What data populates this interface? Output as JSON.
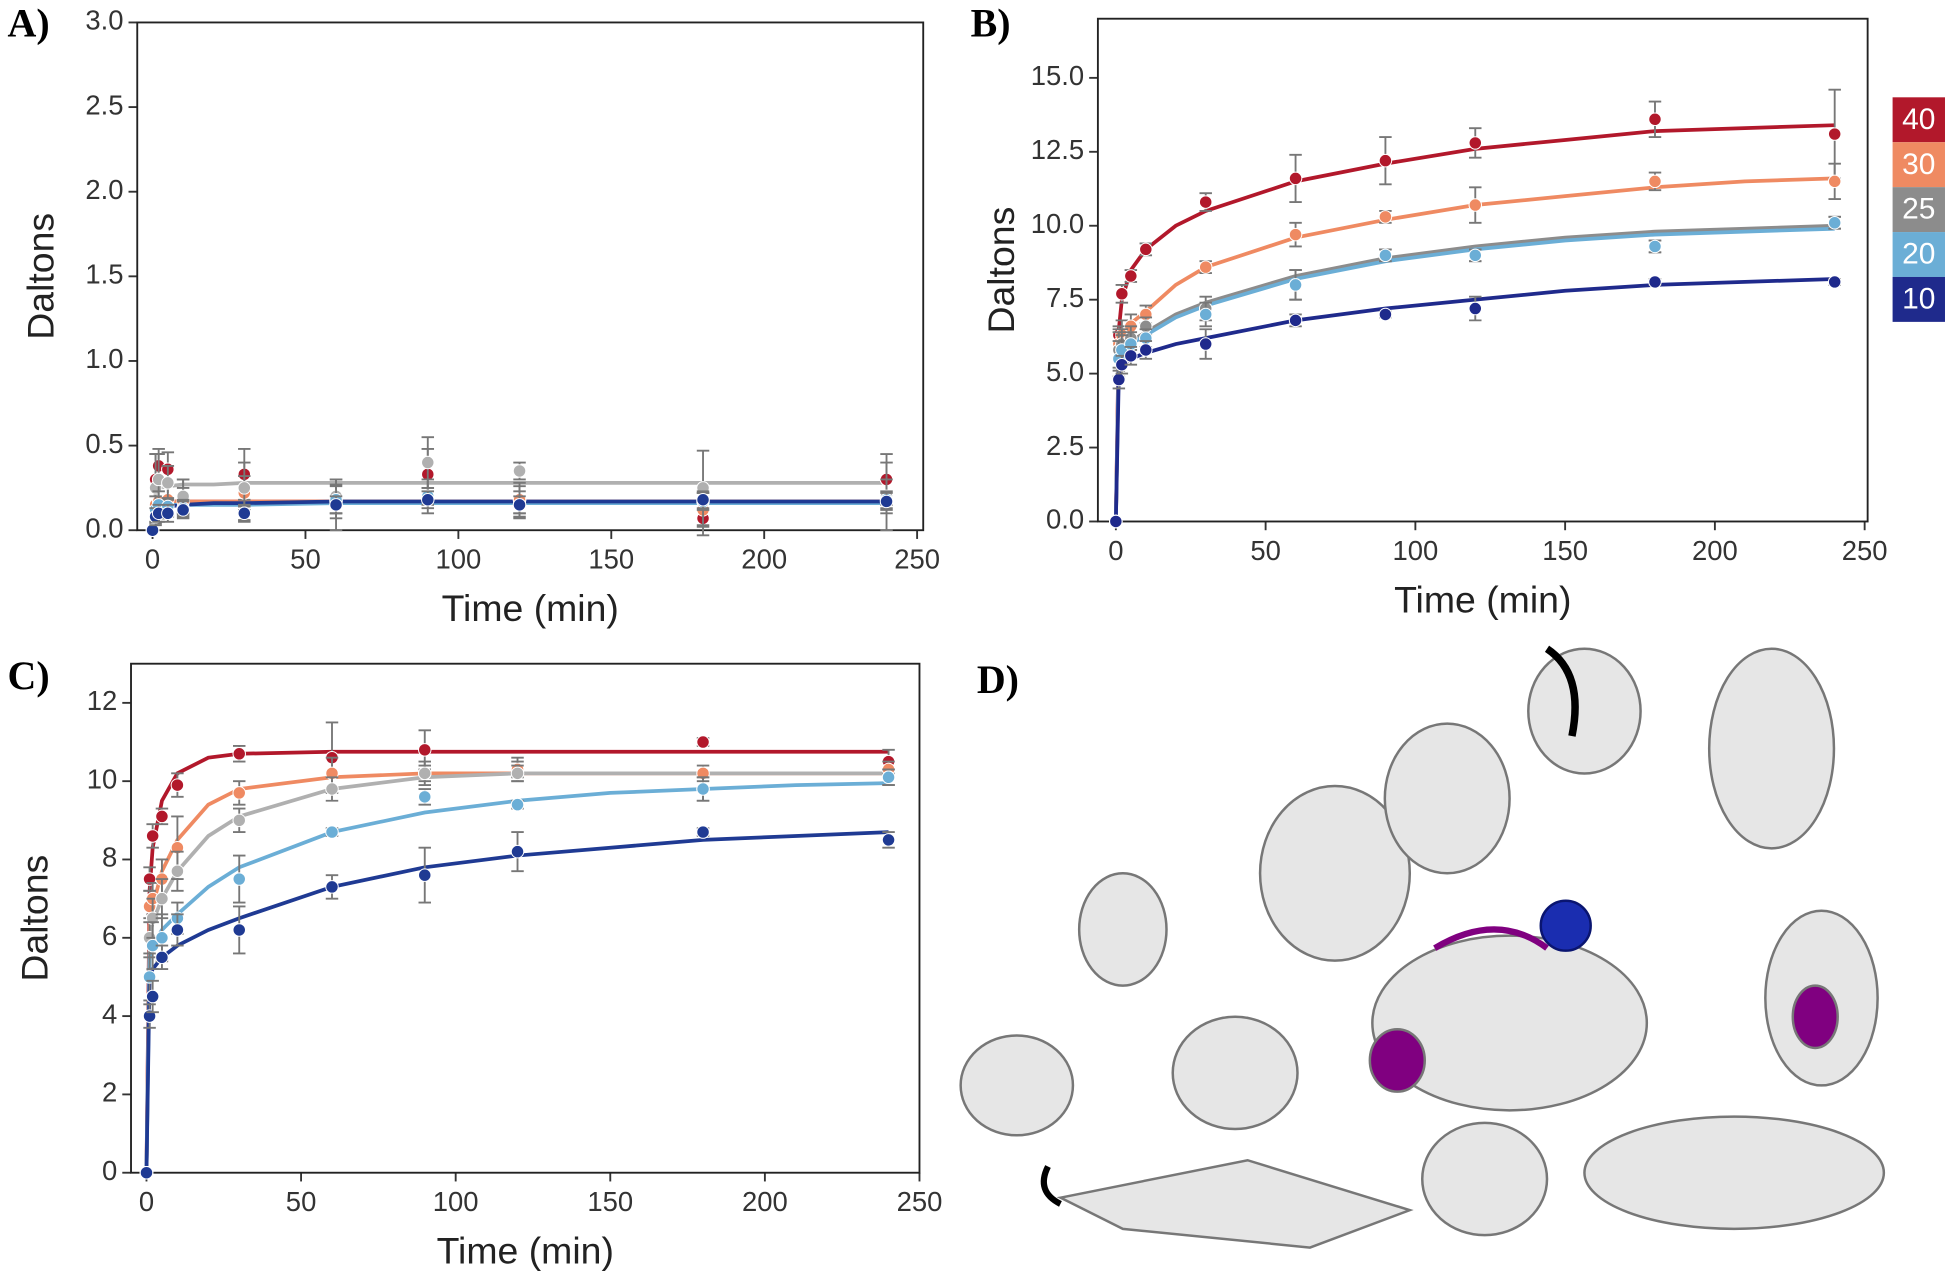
{
  "chart_data": [
    {
      "type": "scatter",
      "label": "A)",
      "xlabel": "Time (min)",
      "ylabel": "Daltons",
      "xlim": [
        -5,
        252
      ],
      "xticks": [
        0,
        50,
        100,
        150,
        200,
        250
      ],
      "ylim": [
        0,
        3
      ],
      "yticks": [
        {
          "value": 0,
          "label": "0.0"
        },
        0.5,
        {
          "value": 1,
          "label": "1.0"
        },
        1.5,
        {
          "value": 2,
          "label": "2.0"
        },
        2.5,
        {
          "value": 3,
          "label": "3.0"
        }
      ],
      "x": [
        0,
        1,
        2,
        5,
        10,
        30,
        60,
        90,
        120,
        180,
        240
      ],
      "fit_x": [
        0,
        1,
        2,
        5,
        10,
        20,
        30,
        60,
        90,
        120,
        150,
        180,
        210,
        240
      ],
      "series": [
        {
          "color": "#b2182b",
          "values": [
            0,
            0.3,
            0.38,
            0.36,
            0.2,
            0.33,
            0.15,
            0.33,
            0.18,
            0.07,
            0.3
          ],
          "errors": [
            0,
            0.15,
            0.1,
            0.1,
            0.1,
            0.15,
            0.15,
            0.15,
            0.1,
            0.1,
            0.15
          ],
          "fit": [
            0,
            0.15,
            0.16,
            0.17,
            0.17,
            0.17,
            0.17,
            0.17,
            0.17,
            0.17,
            0.17,
            0.17,
            0.17,
            0.17
          ]
        },
        {
          "color": "#ef8a62",
          "values": [
            0,
            0.15,
            0.17,
            0.18,
            0.17,
            0.22,
            0.17,
            0.2,
            0.18,
            0.12,
            0.2
          ],
          "errors": [
            0,
            0.1,
            0.1,
            0.1,
            0.08,
            0.1,
            0.1,
            0.1,
            0.08,
            0.1,
            0.1
          ],
          "fit": [
            0,
            0.16,
            0.17,
            0.17,
            0.17,
            0.17,
            0.17,
            0.17,
            0.17,
            0.17,
            0.17,
            0.17,
            0.17,
            0.17
          ]
        },
        {
          "color": "#b0b0b0",
          "values": [
            0,
            0.25,
            0.3,
            0.28,
            0.2,
            0.25,
            0.2,
            0.4,
            0.35,
            0.25,
            0.2
          ],
          "errors": [
            0,
            0.2,
            0.15,
            0.1,
            0.1,
            0.15,
            0.1,
            0.15,
            0.05,
            0.22,
            0.2
          ],
          "fit": [
            0,
            0.22,
            0.25,
            0.26,
            0.27,
            0.27,
            0.28,
            0.28,
            0.28,
            0.28,
            0.28,
            0.28,
            0.28,
            0.28
          ]
        },
        {
          "color": "#6baed6",
          "values": [
            0,
            0.12,
            0.15,
            0.14,
            0.13,
            0.1,
            0.18,
            0.2,
            0.15,
            0.17,
            0.18
          ],
          "errors": [
            0,
            0.08,
            0.08,
            0.05,
            0.05,
            0.04,
            0.08,
            0.05,
            0.08,
            0.05,
            0.05
          ],
          "fit": [
            0,
            0.13,
            0.14,
            0.15,
            0.15,
            0.15,
            0.15,
            0.16,
            0.16,
            0.16,
            0.16,
            0.16,
            0.16,
            0.16
          ]
        },
        {
          "color": "#1f3a93",
          "values": [
            0,
            0.08,
            0.1,
            0.1,
            0.12,
            0.1,
            0.15,
            0.18,
            0.15,
            0.18,
            0.17
          ],
          "errors": [
            0,
            0.05,
            0.05,
            0.05,
            0.05,
            0.05,
            0.05,
            0.05,
            0.05,
            0.05,
            0.05
          ],
          "fit": [
            0,
            0.1,
            0.12,
            0.14,
            0.15,
            0.16,
            0.16,
            0.17,
            0.17,
            0.17,
            0.17,
            0.17,
            0.17,
            0.17
          ]
        }
      ]
    },
    {
      "type": "scatter",
      "label": "B)",
      "xlabel": "Time (min)",
      "ylabel": "Daltons",
      "xlim": [
        -6,
        251
      ],
      "xticks": [
        0,
        50,
        100,
        150,
        200,
        250
      ],
      "ylim": [
        0,
        17
      ],
      "yticks": [
        {
          "value": 0,
          "label": "0.0"
        },
        2.5,
        {
          "value": 5,
          "label": "5.0"
        },
        7.5,
        {
          "value": 10,
          "label": "10.0"
        },
        12.5,
        {
          "value": 15,
          "label": "15.0"
        }
      ],
      "legend": "right",
      "x": [
        0,
        1,
        2,
        5,
        10,
        30,
        60,
        90,
        120,
        180,
        240
      ],
      "fit_x": [
        0,
        1,
        2,
        5,
        10,
        20,
        30,
        60,
        90,
        120,
        150,
        180,
        210,
        240
      ],
      "series": [
        {
          "name": "40",
          "color": "#b2182b",
          "values": [
            0,
            6.3,
            7.7,
            8.3,
            9.2,
            10.8,
            11.6,
            12.2,
            12.8,
            13.6,
            13.1
          ],
          "errors": [
            0,
            0.3,
            0.3,
            0.2,
            0.2,
            0.3,
            0.8,
            0.8,
            0.5,
            0.6,
            1.5
          ],
          "fit": [
            0,
            6.5,
            7.5,
            8.5,
            9.2,
            10.0,
            10.5,
            11.5,
            12.1,
            12.6,
            12.9,
            13.2,
            13.3,
            13.4
          ]
        },
        {
          "name": "30",
          "color": "#ef8a62",
          "values": [
            0,
            6.0,
            6.3,
            6.6,
            7.0,
            8.6,
            9.7,
            10.3,
            10.7,
            11.5,
            11.5
          ],
          "errors": [
            0,
            0.5,
            0.5,
            0.4,
            0.3,
            0.2,
            0.4,
            0.2,
            0.6,
            0.3,
            0.6
          ],
          "fit": [
            0,
            6.0,
            6.3,
            6.7,
            7.1,
            8.0,
            8.6,
            9.6,
            10.2,
            10.7,
            11.0,
            11.3,
            11.5,
            11.6
          ]
        },
        {
          "name": "25",
          "color": "#8c8c8c",
          "values": [
            0,
            5.8,
            6.0,
            6.2,
            6.6,
            7.2,
            8.0,
            9.0,
            9.0,
            9.3,
            10.1
          ],
          "errors": [
            0,
            0.6,
            0.5,
            0.4,
            0.3,
            0.4,
            0.5,
            0.2,
            0.2,
            0.2,
            0.2
          ],
          "fit": [
            0,
            5.7,
            5.9,
            6.1,
            6.4,
            7.0,
            7.4,
            8.3,
            8.9,
            9.3,
            9.6,
            9.8,
            9.9,
            10.0
          ]
        },
        {
          "name": "20",
          "color": "#6baed6",
          "values": [
            0,
            5.5,
            5.8,
            6.0,
            6.2,
            7.0,
            8.0,
            9.0,
            9.0,
            9.3,
            10.1
          ],
          "errors": [
            0,
            0.6,
            0.5,
            0.4,
            0.3,
            0.4,
            0.5,
            0.2,
            0.2,
            0.2,
            0.2
          ],
          "fit": [
            0,
            5.6,
            5.8,
            6.0,
            6.3,
            6.9,
            7.3,
            8.2,
            8.8,
            9.2,
            9.5,
            9.7,
            9.8,
            9.9
          ]
        },
        {
          "name": "10",
          "color": "#1f2a8c",
          "values": [
            0,
            4.8,
            5.3,
            5.6,
            5.8,
            6.0,
            6.8,
            7.0,
            7.2,
            8.1,
            8.1
          ],
          "errors": [
            0,
            0.3,
            0.3,
            0.3,
            0.3,
            0.5,
            0.2,
            0.1,
            0.4,
            0.1,
            0.1
          ],
          "fit": [
            0,
            5.0,
            5.3,
            5.5,
            5.7,
            6.0,
            6.2,
            6.8,
            7.2,
            7.5,
            7.8,
            8.0,
            8.1,
            8.2
          ]
        }
      ]
    },
    {
      "type": "scatter",
      "label": "C)",
      "xlabel": "Time (min)",
      "ylabel": "Daltons",
      "xlim": [
        -5,
        250
      ],
      "xticks": [
        0,
        50,
        100,
        150,
        200,
        250
      ],
      "ylim": [
        0,
        13
      ],
      "yticks": [
        0,
        2,
        4,
        6,
        8,
        10,
        12
      ],
      "x": [
        0,
        1,
        2,
        5,
        10,
        30,
        60,
        90,
        120,
        180,
        240
      ],
      "fit_x": [
        0,
        1,
        2,
        5,
        10,
        20,
        30,
        60,
        90,
        120,
        150,
        180,
        210,
        240
      ],
      "series": [
        {
          "color": "#b2182b",
          "values": [
            0,
            7.5,
            8.6,
            9.1,
            9.9,
            10.7,
            10.6,
            10.8,
            10.3,
            11.0,
            10.5
          ],
          "errors": [
            0,
            0.3,
            0.3,
            0.2,
            0.3,
            0.2,
            0.9,
            0.5,
            0.3,
            0.1,
            0.3
          ],
          "fit": [
            0,
            7.2,
            8.3,
            9.5,
            10.2,
            10.6,
            10.7,
            10.75,
            10.75,
            10.75,
            10.75,
            10.75,
            10.75,
            10.75
          ]
        },
        {
          "color": "#ef8a62",
          "values": [
            0,
            6.8,
            7.0,
            7.5,
            8.3,
            9.7,
            10.2,
            10.2,
            10.3,
            10.2,
            10.3
          ],
          "errors": [
            0,
            0.4,
            0.4,
            0.5,
            0.8,
            0.3,
            0.4,
            0.3,
            0.2,
            0.2,
            0.2
          ],
          "fit": [
            0,
            6.3,
            6.8,
            7.7,
            8.5,
            9.4,
            9.8,
            10.1,
            10.2,
            10.2,
            10.2,
            10.2,
            10.2,
            10.2
          ]
        },
        {
          "color": "#b0b0b0",
          "values": [
            0,
            6.0,
            6.5,
            7.0,
            7.7,
            9.0,
            9.8,
            10.2,
            10.2,
            9.8,
            10.1
          ],
          "errors": [
            0,
            0.5,
            0.5,
            0.5,
            0.5,
            0.3,
            0.3,
            0.2,
            0.2,
            0.3,
            0.2
          ],
          "fit": [
            0,
            6.0,
            6.4,
            7.0,
            7.7,
            8.6,
            9.1,
            9.8,
            10.1,
            10.2,
            10.2,
            10.2,
            10.2,
            10.2
          ]
        },
        {
          "color": "#6baed6",
          "values": [
            0,
            5.0,
            5.8,
            6.0,
            6.5,
            7.5,
            8.7,
            9.6,
            9.4,
            9.8,
            10.1
          ],
          "errors": [
            0,
            0.6,
            0.6,
            0.6,
            0.4,
            0.6,
            0.1,
            0.2,
            0.1,
            0.3,
            0.2
          ],
          "fit": [
            0,
            5.5,
            5.8,
            6.2,
            6.6,
            7.3,
            7.8,
            8.7,
            9.2,
            9.5,
            9.7,
            9.8,
            9.9,
            9.95
          ]
        },
        {
          "color": "#1f3a93",
          "values": [
            0,
            4.0,
            4.5,
            5.5,
            6.2,
            6.2,
            7.3,
            7.6,
            8.2,
            8.7,
            8.5
          ],
          "errors": [
            0,
            0.3,
            0.4,
            0.3,
            0.4,
            0.6,
            0.3,
            0.7,
            0.5,
            0.1,
            0.2
          ],
          "fit": [
            0,
            5.0,
            5.2,
            5.5,
            5.8,
            6.2,
            6.5,
            7.3,
            7.8,
            8.1,
            8.3,
            8.5,
            8.6,
            8.7
          ]
        }
      ]
    }
  ],
  "image": {
    "label": "D)"
  }
}
